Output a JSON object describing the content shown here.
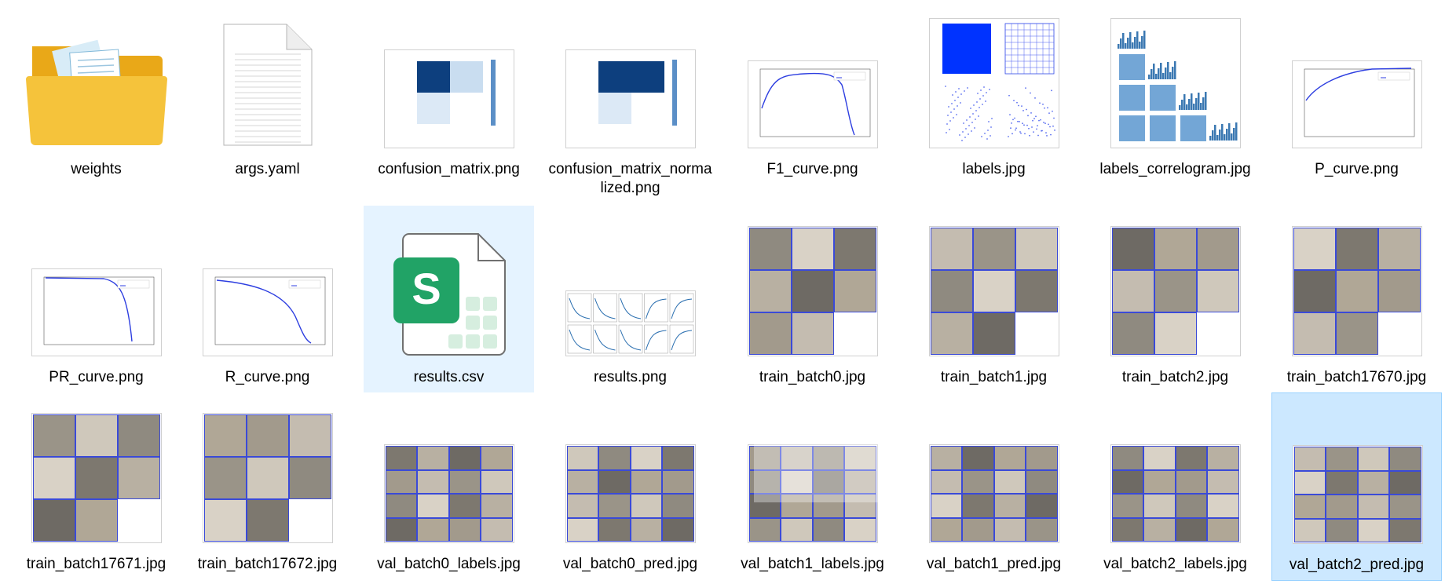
{
  "files": [
    {
      "name": "weights",
      "kind": "folder",
      "icon": "folder-icon"
    },
    {
      "name": "args.yaml",
      "kind": "document",
      "icon": "document-icon"
    },
    {
      "name": "confusion_matrix.png",
      "kind": "image",
      "icon": "confusion-matrix-thumbnail"
    },
    {
      "name": "confusion_matrix_normalized.png",
      "kind": "image",
      "icon": "confusion-matrix-thumbnail"
    },
    {
      "name": "F1_curve.png",
      "kind": "image",
      "icon": "curve-thumbnail"
    },
    {
      "name": "labels.jpg",
      "kind": "image",
      "icon": "labels-thumbnail"
    },
    {
      "name": "labels_correlogram.jpg",
      "kind": "image",
      "icon": "correlogram-thumbnail"
    },
    {
      "name": "P_curve.png",
      "kind": "image",
      "icon": "curve-thumbnail"
    },
    {
      "name": "PR_curve.png",
      "kind": "image",
      "icon": "curve-thumbnail"
    },
    {
      "name": "R_curve.png",
      "kind": "image",
      "icon": "curve-thumbnail"
    },
    {
      "name": "results.csv",
      "kind": "spreadsheet",
      "icon": "spreadsheet-icon"
    },
    {
      "name": "results.png",
      "kind": "image",
      "icon": "results-thumbnail"
    },
    {
      "name": "train_batch0.jpg",
      "kind": "image",
      "icon": "photo-mosaic-thumbnail"
    },
    {
      "name": "train_batch1.jpg",
      "kind": "image",
      "icon": "photo-mosaic-thumbnail"
    },
    {
      "name": "train_batch2.jpg",
      "kind": "image",
      "icon": "photo-mosaic-thumbnail"
    },
    {
      "name": "train_batch17670.jpg",
      "kind": "image",
      "icon": "photo-mosaic-thumbnail"
    },
    {
      "name": "train_batch17671.jpg",
      "kind": "image",
      "icon": "photo-mosaic-thumbnail"
    },
    {
      "name": "train_batch17672.jpg",
      "kind": "image",
      "icon": "photo-mosaic-thumbnail"
    },
    {
      "name": "val_batch0_labels.jpg",
      "kind": "image",
      "icon": "photo-mosaic-thumbnail"
    },
    {
      "name": "val_batch0_pred.jpg",
      "kind": "image",
      "icon": "photo-mosaic-thumbnail"
    },
    {
      "name": "val_batch1_labels.jpg",
      "kind": "image",
      "icon": "photo-mosaic-thumbnail"
    },
    {
      "name": "val_batch1_pred.jpg",
      "kind": "image",
      "icon": "photo-mosaic-thumbnail"
    },
    {
      "name": "val_batch2_labels.jpg",
      "kind": "image",
      "icon": "photo-mosaic-thumbnail"
    },
    {
      "name": "val_batch2_pred.jpg",
      "kind": "image",
      "icon": "photo-mosaic-thumbnail",
      "selected": true
    }
  ],
  "colors": {
    "selection_bg": "#cce8ff",
    "hover_bg": "#e5f3ff",
    "folder": "#f5c33b",
    "spreadsheet_green": "#21a366",
    "box_blue": "#3a4ad8"
  }
}
